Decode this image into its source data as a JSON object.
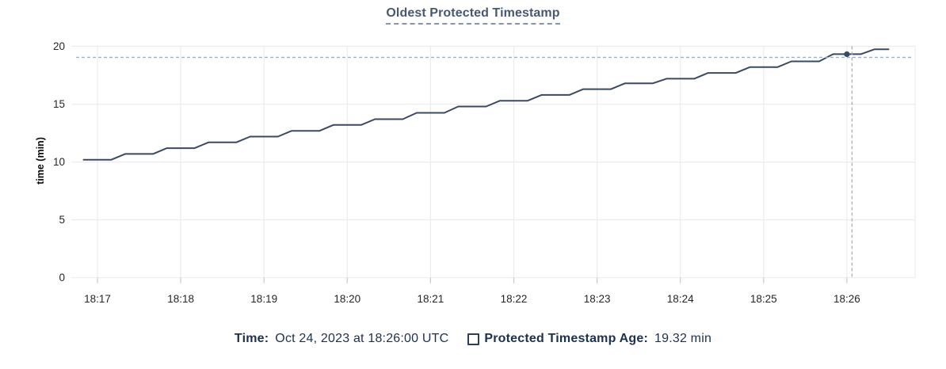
{
  "chart": {
    "title": "Oldest Protected Timestamp",
    "ylabel": "time (min)"
  },
  "legend": {
    "time_label": "Time:",
    "time_value": "Oct 24, 2023 at 18:26:00 UTC",
    "series_label": "Protected Timestamp Age:",
    "series_value": "19.32 min"
  },
  "colors": {
    "line": "#3b4a63",
    "dot": "#3b4a63",
    "grid": "#ececec",
    "axis_tick": "#c9c9c9",
    "crosshair": "#9db1c2",
    "title_text": "#475872",
    "legend_text": "#1c3150",
    "tick_text": "#262626"
  },
  "chart_data": {
    "type": "line",
    "title": "Oldest Protected Timestamp",
    "xlabel": "",
    "ylabel": "time (min)",
    "ylim": [
      0,
      20
    ],
    "y_ticks": [
      0,
      5,
      10,
      15,
      20
    ],
    "x_tick_labels": [
      "18:17",
      "18:18",
      "18:19",
      "18:20",
      "18:21",
      "18:22",
      "18:23",
      "18:24",
      "18:25",
      "18:26"
    ],
    "x_visible_range": [
      "18:16:45",
      "18:26:49"
    ],
    "grid": true,
    "legend_position": "bottom",
    "series": [
      {
        "name": "Protected Timestamp Age",
        "unit": "min",
        "color": "#3b4a63",
        "start_time": "18:16:50",
        "interval_seconds": 10,
        "values": [
          10.2,
          10.2,
          10.2,
          10.7,
          10.7,
          10.7,
          11.2,
          11.2,
          11.2,
          11.7,
          11.7,
          11.7,
          12.2,
          12.2,
          12.2,
          12.7,
          12.7,
          12.7,
          13.2,
          13.2,
          13.2,
          13.7,
          13.7,
          13.7,
          14.25,
          14.25,
          14.25,
          14.8,
          14.8,
          14.8,
          15.3,
          15.3,
          15.3,
          15.8,
          15.8,
          15.8,
          16.3,
          16.3,
          16.3,
          16.8,
          16.8,
          16.8,
          17.2,
          17.2,
          17.2,
          17.7,
          17.7,
          17.7,
          18.2,
          18.2,
          18.2,
          18.7,
          18.7,
          18.7,
          19.32,
          19.32,
          19.32,
          19.75,
          19.75
        ]
      }
    ],
    "hover_point": {
      "time": "18:26:00",
      "value": 19.32
    },
    "annotations": {
      "crosshair": "dashed horizontal and vertical hover guides intersecting near the 18:26 data point"
    }
  }
}
